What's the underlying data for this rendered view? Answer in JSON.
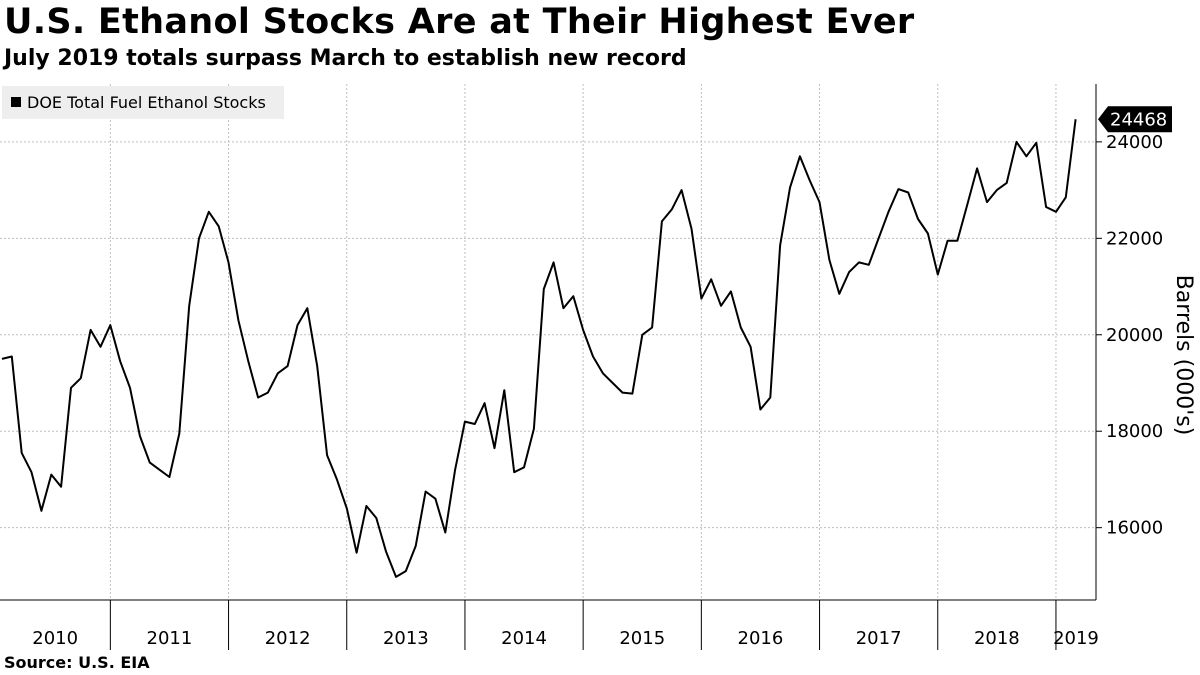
{
  "header": {
    "title": "U.S. Ethanol Stocks Are at Their Highest Ever",
    "subtitle": "July 2019 totals surpass March to establish new record"
  },
  "footer": {
    "source": "Source: U.S. EIA"
  },
  "colors": {
    "line": "#000000",
    "grid": "#bfbfbf",
    "legend_bg": "#eeeeee",
    "badge": "#000000"
  },
  "chart_data": {
    "type": "line",
    "title": "U.S. Ethanol Stocks Are at Their Highest Ever",
    "subtitle": "July 2019 totals surpass March to establish new record",
    "xlabel": "",
    "ylabel": "Barrels (000's)",
    "ylim": [
      14500,
      25200
    ],
    "yticks": [
      16000,
      18000,
      20000,
      22000,
      24000
    ],
    "ytick_labels": [
      "16000",
      "18000",
      "20000",
      "22000",
      "24000"
    ],
    "year_labels": [
      "2010",
      "2011",
      "2012",
      "2013",
      "2014",
      "2015",
      "2016",
      "2017",
      "2018",
      "2019"
    ],
    "legend": [
      "DOE Total Fuel Ethanol Stocks"
    ],
    "legend_position": "top-left",
    "last_value_label": "24468",
    "grid": true,
    "series": [
      {
        "name": "DOE Total Fuel Ethanol Stocks",
        "start": "2010-02",
        "frequency": "monthly",
        "values": [
          19500,
          19550,
          17550,
          17150,
          16350,
          17100,
          16850,
          18900,
          19100,
          20100,
          19750,
          20200,
          19450,
          18900,
          17900,
          17350,
          17200,
          17050,
          17950,
          20600,
          22000,
          22550,
          22250,
          21500,
          20300,
          19450,
          18700,
          18800,
          19200,
          19350,
          20200,
          20550,
          19350,
          17500,
          17000,
          16400,
          15480,
          16450,
          16200,
          15500,
          14980,
          15100,
          15620,
          16750,
          16600,
          15900,
          17200,
          18200,
          18150,
          18580,
          17650,
          18850,
          17150,
          17250,
          18050,
          20950,
          21500,
          20550,
          20800,
          20100,
          19550,
          19200,
          19000,
          18800,
          18780,
          20000,
          20150,
          22350,
          22600,
          23000,
          22200,
          20750,
          21150,
          20600,
          20900,
          20150,
          19750,
          18450,
          18700,
          21850,
          23050,
          23700,
          23200,
          22750,
          21550,
          20850,
          21300,
          21500,
          21450,
          22000,
          22550,
          23020,
          22950,
          22400,
          22100,
          21250,
          21950,
          21950,
          22700,
          23450,
          22750,
          23000,
          23150,
          24000,
          23700,
          23980,
          22650,
          22550,
          22850,
          24468
        ]
      }
    ]
  }
}
